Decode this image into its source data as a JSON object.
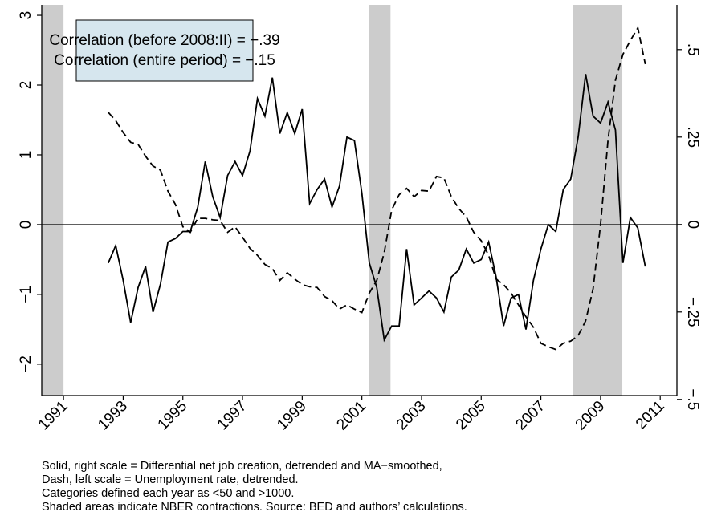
{
  "chart_data": {
    "type": "line",
    "annotations": [
      "Correlation (before 2008:II) = −.39",
      "Correlation (entire period) = −.15"
    ],
    "notes": [
      "Solid, right scale = Differential net job creation, detrended and MA−smoothed,",
      "Dash, left scale = Unemployment rate, detrended.",
      "Categories defined each year as <50 and >1000.",
      "Shaded areas indicate NBER contractions. Source: BED and authors’ calculations."
    ],
    "xlim": [
      1990.27,
      2011.56
    ],
    "xticks": [
      1991,
      1993,
      1995,
      1997,
      1999,
      2001,
      2003,
      2005,
      2007,
      2009,
      2011
    ],
    "ylim": [
      -2.45,
      3.15
    ],
    "yticks": [
      3,
      2,
      1,
      0,
      {
        "value": -1,
        "label": "−1"
      },
      {
        "value": -2,
        "label": "−2"
      }
    ],
    "y2lim": [
      -0.489,
      0.628
    ],
    "y2ticks": [
      {
        "value": 0.5,
        "label": ".5"
      },
      {
        "value": 0.25,
        "label": ".25"
      },
      0,
      {
        "value": -0.25,
        "label": "−.25"
      },
      {
        "value": -0.5,
        "label": "−.5"
      }
    ],
    "recessions": [
      [
        1990.27,
        1991.0
      ],
      [
        2001.23,
        2001.96
      ],
      [
        2008.07,
        2009.73
      ]
    ],
    "x": [
      1992.5,
      1992.75,
      1993,
      1993.25,
      1993.5,
      1993.75,
      1994,
      1994.25,
      1994.5,
      1994.75,
      1995,
      1995.25,
      1995.5,
      1995.75,
      1996,
      1996.25,
      1996.5,
      1996.75,
      1997,
      1997.25,
      1997.5,
      1997.75,
      1998,
      1998.25,
      1998.5,
      1998.75,
      1999,
      1999.25,
      1999.5,
      1999.75,
      2000,
      2000.25,
      2000.5,
      2000.75,
      2001,
      2001.25,
      2001.5,
      2001.75,
      2002,
      2002.25,
      2002.5,
      2002.75,
      2003,
      2003.25,
      2003.5,
      2003.75,
      2004,
      2004.25,
      2004.5,
      2004.75,
      2005,
      2005.25,
      2005.5,
      2005.75,
      2006,
      2006.25,
      2006.5,
      2006.75,
      2007,
      2007.25,
      2007.5,
      2007.75,
      2008,
      2008.25,
      2008.5,
      2008.75,
      2009,
      2009.25,
      2009.5,
      2009.75,
      2010,
      2010.25,
      2010.5
    ],
    "series": [
      {
        "color": "#000000",
        "dash": true,
        "axis": "y",
        "values": [
          1.61,
          1.49,
          1.32,
          1.18,
          1.15,
          0.98,
          0.84,
          0.78,
          0.48,
          0.29,
          -0.03,
          -0.11,
          0.09,
          0.09,
          0.07,
          0.06,
          -0.11,
          -0.03,
          -0.18,
          -0.34,
          -0.44,
          -0.57,
          -0.63,
          -0.8,
          -0.69,
          -0.78,
          -0.86,
          -0.89,
          -0.9,
          -1.03,
          -1.09,
          -1.21,
          -1.15,
          -1.21,
          -1.26,
          -0.98,
          -0.8,
          -0.4,
          0.21,
          0.43,
          0.52,
          0.4,
          0.49,
          0.48,
          0.69,
          0.67,
          0.4,
          0.23,
          0.11,
          -0.11,
          -0.23,
          -0.44,
          -0.78,
          -0.86,
          -0.98,
          -1.15,
          -1.32,
          -1.47,
          -1.7,
          -1.75,
          -1.79,
          -1.7,
          -1.67,
          -1.59,
          -1.38,
          -0.92,
          0,
          1.21,
          2.07,
          2.44,
          2.64,
          2.82,
          2.3
        ]
      },
      {
        "color": "#000000",
        "dash": false,
        "axis": "y2",
        "values": [
          -0.11,
          -0.06,
          -0.16,
          -0.28,
          -0.18,
          -0.12,
          -0.25,
          -0.17,
          -0.05,
          -0.04,
          -0.02,
          -0.02,
          0.05,
          0.18,
          0.08,
          0.02,
          0.14,
          0.18,
          0.14,
          0.21,
          0.36,
          0.31,
          0.42,
          0.26,
          0.32,
          0.26,
          0.33,
          0.06,
          0.1,
          0.13,
          0.05,
          0.11,
          0.25,
          0.24,
          0.09,
          -0.11,
          -0.18,
          -0.33,
          -0.29,
          -0.29,
          -0.07,
          -0.23,
          -0.21,
          -0.19,
          -0.21,
          -0.25,
          -0.15,
          -0.13,
          -0.07,
          -0.11,
          -0.1,
          -0.05,
          -0.15,
          -0.29,
          -0.21,
          -0.2,
          -0.3,
          -0.16,
          -0.07,
          0,
          -0.02,
          0.1,
          0.13,
          0.25,
          0.43,
          0.31,
          0.29,
          0.35,
          0.27,
          -0.11,
          0.02,
          -0.01,
          -0.12
        ]
      }
    ]
  }
}
